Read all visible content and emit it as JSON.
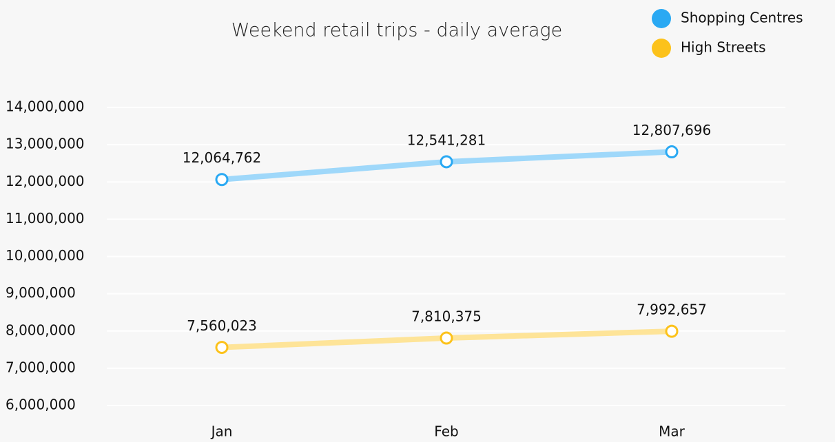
{
  "chart_data": {
    "type": "line",
    "title": "Weekend retail trips - daily average",
    "categories": [
      "Jan",
      "Feb",
      "Mar"
    ],
    "series": [
      {
        "name": "Shopping Centres",
        "color": "#2aa9f3",
        "values": [
          12064762,
          12541281,
          12807696
        ],
        "value_labels": [
          "12,064,762",
          "12,541,281",
          "12,807,696"
        ]
      },
      {
        "name": "High Streets",
        "color": "#fcc21b",
        "values": [
          7560023,
          7810375,
          7992657
        ],
        "value_labels": [
          "7,560,023",
          "7,810,375",
          "7,992,657"
        ]
      }
    ],
    "ylim": [
      6000000,
      14000000
    ],
    "yticks": [
      {
        "value": 6000000,
        "label": "6,000,000"
      },
      {
        "value": 7000000,
        "label": "7,000,000"
      },
      {
        "value": 8000000,
        "label": "8,000,000"
      },
      {
        "value": 9000000,
        "label": "9,000,000"
      },
      {
        "value": 10000000,
        "label": "10,000,000"
      },
      {
        "value": 11000000,
        "label": "11,000,000"
      },
      {
        "value": 12000000,
        "label": "12,000,000"
      },
      {
        "value": 13000000,
        "label": "13,000,000"
      },
      {
        "value": 14000000,
        "label": "14,000,000"
      }
    ],
    "grid": true,
    "legend": "top-right"
  }
}
